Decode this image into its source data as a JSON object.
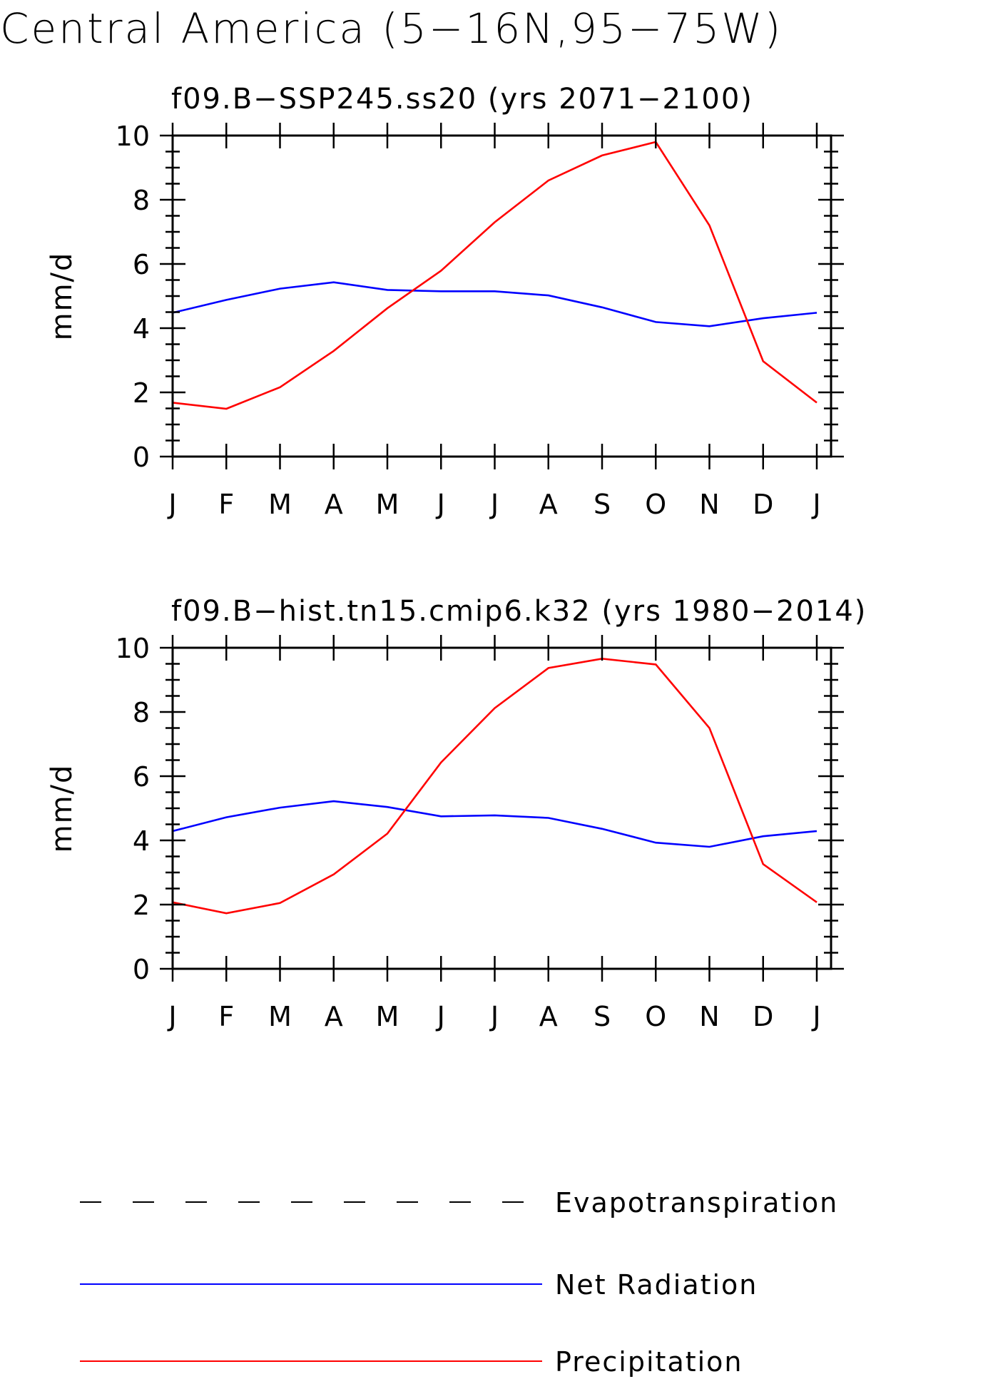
{
  "figure_title": "Central America (5−16N,95−75W)",
  "chart_data": [
    {
      "type": "line",
      "title": "f09.B−SSP245.ss20 (yrs 2071−2100)",
      "ylabel": "mm/d",
      "xlabel": "",
      "ylim": [
        0,
        10
      ],
      "yticks": [
        "0",
        "2",
        "4",
        "6",
        "8",
        "10"
      ],
      "categories": [
        "J",
        "F",
        "M",
        "A",
        "M",
        "J",
        "J",
        "A",
        "S",
        "O",
        "N",
        "D",
        "J"
      ],
      "series": [
        {
          "name": "Net Radiation",
          "color": "#0000ff",
          "values": [
            4.48,
            4.88,
            5.23,
            5.43,
            5.19,
            5.15,
            5.15,
            5.02,
            4.65,
            4.19,
            4.06,
            4.31,
            4.48
          ]
        },
        {
          "name": "Precipitation",
          "color": "#ff0000",
          "values": [
            1.68,
            1.49,
            2.16,
            3.29,
            4.62,
            5.79,
            7.3,
            8.6,
            9.38,
            9.8,
            7.2,
            2.97,
            1.68
          ]
        }
      ]
    },
    {
      "type": "line",
      "title": "f09.B−hist.tn15.cmip6.k32 (yrs 1980−2014)",
      "ylabel": "mm/d",
      "xlabel": "",
      "ylim": [
        0,
        10
      ],
      "yticks": [
        "0",
        "2",
        "4",
        "6",
        "8",
        "10"
      ],
      "categories": [
        "J",
        "F",
        "M",
        "A",
        "M",
        "J",
        "J",
        "A",
        "S",
        "O",
        "N",
        "D",
        "J"
      ],
      "series": [
        {
          "name": "Net Radiation",
          "color": "#0000ff",
          "values": [
            4.29,
            4.72,
            5.02,
            5.22,
            5.04,
            4.75,
            4.78,
            4.7,
            4.36,
            3.93,
            3.8,
            4.13,
            4.29
          ]
        },
        {
          "name": "Precipitation",
          "color": "#ff0000",
          "values": [
            2.07,
            1.73,
            2.05,
            2.94,
            4.21,
            6.43,
            8.12,
            9.37,
            9.66,
            9.48,
            7.5,
            3.26,
            2.07
          ]
        }
      ]
    }
  ],
  "legend": [
    {
      "label": "Evapotranspiration",
      "color": "#000000",
      "style": "dashed"
    },
    {
      "label": "Net Radiation",
      "color": "#0000ff",
      "style": "solid"
    },
    {
      "label": "Precipitation",
      "color": "#ff0000",
      "style": "solid"
    }
  ]
}
